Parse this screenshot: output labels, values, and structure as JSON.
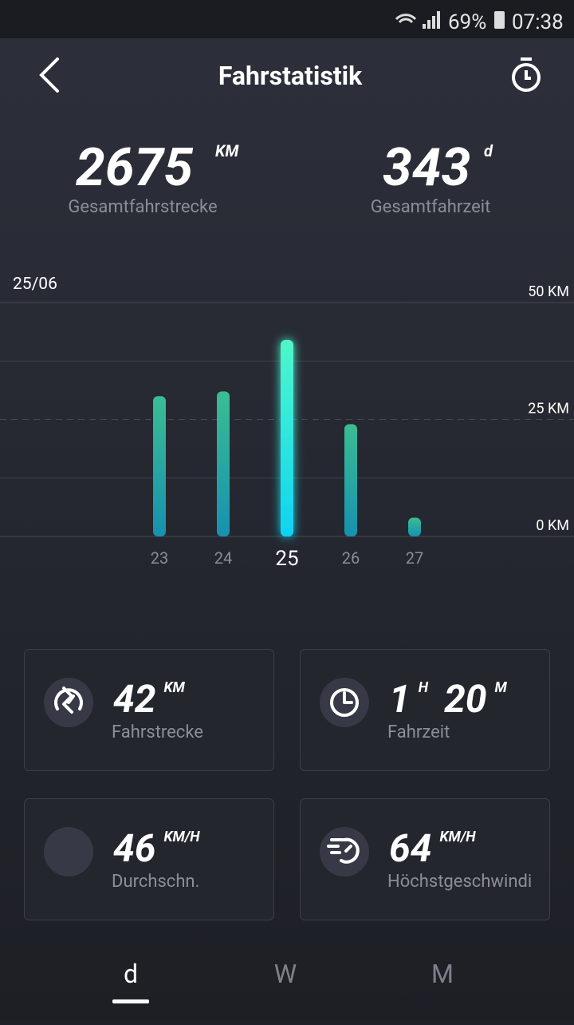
{
  "status_bar": {
    "battery": "69%",
    "time": "07:38"
  },
  "header": {
    "title": "Fahrstatistik"
  },
  "summary": [
    {
      "value": 2675,
      "unit": "KM",
      "label": "Gesamtfahrstrecke"
    },
    {
      "value": 343,
      "unit": "d",
      "label": "Gesamtfahrzeit"
    }
  ],
  "chart_data": {
    "type": "bar",
    "title": "25/06",
    "categories": [
      "23",
      "24",
      "25",
      "26",
      "27"
    ],
    "values": [
      30,
      31,
      42,
      24,
      4
    ],
    "highlight": "25",
    "color": "#2fb8a6",
    "highlight_color": "#3ff2cf",
    "ylim": [
      0,
      50
    ],
    "yticks": [
      {
        "value": 0,
        "label": "0 KM"
      },
      {
        "value": 12.5,
        "label": null
      },
      {
        "value": 25,
        "label": "25 KM"
      },
      {
        "value": 37.5,
        "label": null
      },
      {
        "value": 50,
        "label": "50 KM"
      }
    ],
    "grid": true
  },
  "stats": [
    {
      "parts": [
        {
          "value": 42,
          "unit": "KM"
        }
      ],
      "label": "Fahrstrecke"
    },
    {
      "parts": [
        {
          "value": 1,
          "unit": "H"
        },
        {
          "value": 20,
          "unit": "M"
        }
      ],
      "label": "Fahrzeit"
    },
    {
      "parts": [
        {
          "value": 46,
          "unit": "KM/H"
        }
      ],
      "label": "Durchschn."
    },
    {
      "parts": [
        {
          "value": 64,
          "unit": "KM/H"
        }
      ],
      "label": "Höchstgeschwindi"
    }
  ],
  "tabs": [
    "d",
    "W",
    "M"
  ]
}
